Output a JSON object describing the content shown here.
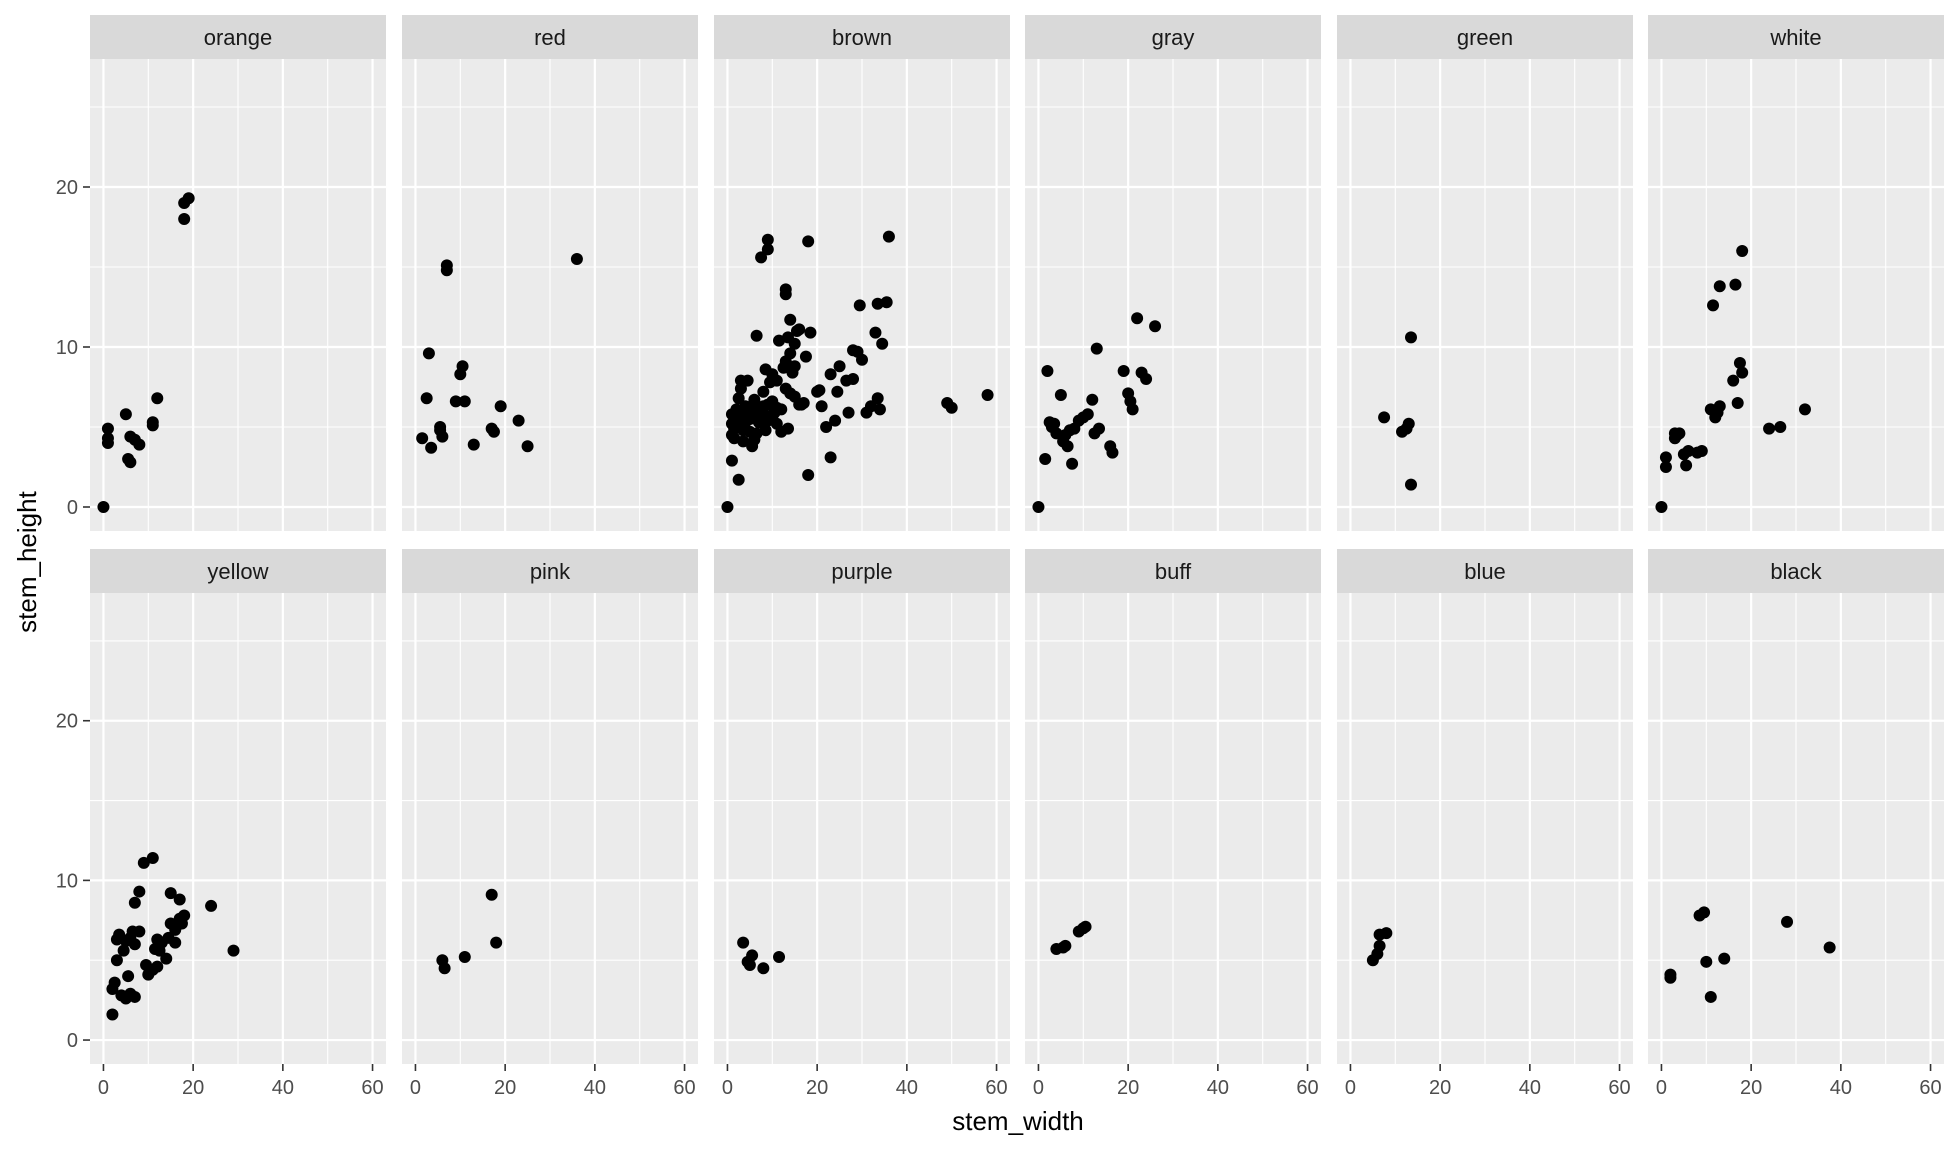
{
  "chart_data": {
    "type": "scatter",
    "xlabel": "stem_width",
    "ylabel": "stem_height",
    "xlim": [
      -3,
      63
    ],
    "ylim": [
      -1.5,
      28
    ],
    "x_ticks": [
      0,
      20,
      40,
      60
    ],
    "y_ticks": [
      0,
      10,
      20
    ],
    "grid": true,
    "layout": {
      "rows": 2,
      "cols": 6
    },
    "panels": [
      {
        "name": "orange",
        "points": [
          [
            0,
            0
          ],
          [
            1,
            4
          ],
          [
            1,
            4.3
          ],
          [
            1,
            4.9
          ],
          [
            5,
            5.8
          ],
          [
            5.5,
            3
          ],
          [
            6,
            2.8
          ],
          [
            6,
            4.4
          ],
          [
            7,
            4.2
          ],
          [
            8,
            3.9
          ],
          [
            11,
            5.1
          ],
          [
            11,
            5.3
          ],
          [
            12,
            6.8
          ],
          [
            18,
            18
          ],
          [
            18,
            19
          ],
          [
            19,
            19.3
          ]
        ]
      },
      {
        "name": "red",
        "points": [
          [
            1.5,
            4.3
          ],
          [
            2.5,
            6.8
          ],
          [
            3,
            9.6
          ],
          [
            3.5,
            3.7
          ],
          [
            5.5,
            4.8
          ],
          [
            5.5,
            5
          ],
          [
            6,
            4.4
          ],
          [
            7,
            14.8
          ],
          [
            7,
            15.1
          ],
          [
            9,
            6.6
          ],
          [
            10,
            8.3
          ],
          [
            10.5,
            8.8
          ],
          [
            11,
            6.6
          ],
          [
            13,
            3.9
          ],
          [
            17,
            4.9
          ],
          [
            17.5,
            4.7
          ],
          [
            19,
            6.3
          ],
          [
            23,
            5.4
          ],
          [
            25,
            3.8
          ],
          [
            36,
            15.5
          ]
        ]
      },
      {
        "name": "brown",
        "points": [
          [
            0,
            0
          ],
          [
            1,
            2.9
          ],
          [
            1,
            4.5
          ],
          [
            1,
            5.2
          ],
          [
            1,
            5.8
          ],
          [
            1.5,
            4.3
          ],
          [
            1.5,
            4.9
          ],
          [
            2,
            5
          ],
          [
            2,
            5.5
          ],
          [
            2,
            6.1
          ],
          [
            2.5,
            1.7
          ],
          [
            2.5,
            6.8
          ],
          [
            3,
            5.2
          ],
          [
            3,
            7.4
          ],
          [
            3,
            7.9
          ],
          [
            3.5,
            4.1
          ],
          [
            3.5,
            4.8
          ],
          [
            4,
            5.3
          ],
          [
            4,
            5.8
          ],
          [
            4,
            6.3
          ],
          [
            4.5,
            7.9
          ],
          [
            5,
            4.7
          ],
          [
            5,
            5.5
          ],
          [
            5,
            6.2
          ],
          [
            5.5,
            3.8
          ],
          [
            5.5,
            5.6
          ],
          [
            6,
            4.2
          ],
          [
            6,
            6.1
          ],
          [
            6,
            6.7
          ],
          [
            6.5,
            4.6
          ],
          [
            6.5,
            5.6
          ],
          [
            6.5,
            10.7
          ],
          [
            7,
            5.3
          ],
          [
            7,
            6.1
          ],
          [
            7.5,
            15.6
          ],
          [
            7.5,
            5.8
          ],
          [
            8,
            6.3
          ],
          [
            8,
            7.2
          ],
          [
            8.5,
            4.8
          ],
          [
            8.5,
            5.7
          ],
          [
            8.5,
            8.6
          ],
          [
            9,
            16.7
          ],
          [
            9,
            16.1
          ],
          [
            9,
            5.4
          ],
          [
            9,
            6.4
          ],
          [
            9.5,
            7.8
          ],
          [
            10,
            5.6
          ],
          [
            10,
            6.6
          ],
          [
            10,
            8.3
          ],
          [
            10.5,
            5.9
          ],
          [
            11,
            5.2
          ],
          [
            11,
            6.2
          ],
          [
            11,
            7.9
          ],
          [
            11.5,
            10.4
          ],
          [
            12,
            4.7
          ],
          [
            12,
            6.1
          ],
          [
            12.5,
            8.7
          ],
          [
            13,
            7.4
          ],
          [
            13,
            9.1
          ],
          [
            13,
            13.3
          ],
          [
            13,
            13.6
          ],
          [
            13.5,
            4.9
          ],
          [
            13.5,
            10.6
          ],
          [
            14,
            11.7
          ],
          [
            14,
            7.1
          ],
          [
            14,
            9.6
          ],
          [
            14.5,
            8.4
          ],
          [
            15,
            8.8
          ],
          [
            15,
            10.2
          ],
          [
            15,
            6.9
          ],
          [
            15.5,
            11
          ],
          [
            16,
            6.4
          ],
          [
            16,
            11.1
          ],
          [
            16.5,
            6.4
          ],
          [
            17,
            6.5
          ],
          [
            17.5,
            9.4
          ],
          [
            18,
            2
          ],
          [
            18,
            16.6
          ],
          [
            18.5,
            10.9
          ],
          [
            20,
            7.2
          ],
          [
            20.5,
            7.3
          ],
          [
            21,
            6.3
          ],
          [
            22,
            5
          ],
          [
            23,
            3.1
          ],
          [
            23,
            8.3
          ],
          [
            24,
            5.4
          ],
          [
            24.5,
            7.2
          ],
          [
            25,
            8.8
          ],
          [
            26.5,
            7.9
          ],
          [
            27,
            5.9
          ],
          [
            28,
            9.8
          ],
          [
            28,
            8
          ],
          [
            29,
            9.7
          ],
          [
            29.5,
            12.6
          ],
          [
            30,
            9.2
          ],
          [
            31,
            5.9
          ],
          [
            32,
            6.3
          ],
          [
            33,
            10.9
          ],
          [
            33.5,
            6.8
          ],
          [
            33.5,
            12.7
          ],
          [
            34,
            6.1
          ],
          [
            34.5,
            10.2
          ],
          [
            35.5,
            12.8
          ],
          [
            36,
            16.9
          ],
          [
            49,
            6.5
          ],
          [
            50,
            6.2
          ],
          [
            58,
            7
          ]
        ]
      },
      {
        "name": "gray",
        "points": [
          [
            0,
            0
          ],
          [
            1.5,
            3
          ],
          [
            2,
            8.5
          ],
          [
            2.5,
            5.3
          ],
          [
            3,
            5
          ],
          [
            3.5,
            5.2
          ],
          [
            4,
            4.6
          ],
          [
            5,
            7
          ],
          [
            5.5,
            4.1
          ],
          [
            6,
            4.5
          ],
          [
            6.5,
            3.8
          ],
          [
            7,
            4.8
          ],
          [
            7.5,
            2.7
          ],
          [
            8,
            4.9
          ],
          [
            9,
            5.4
          ],
          [
            10,
            5.6
          ],
          [
            11,
            5.8
          ],
          [
            12,
            6.7
          ],
          [
            12.5,
            4.6
          ],
          [
            13,
            9.9
          ],
          [
            13.5,
            4.9
          ],
          [
            16,
            3.8
          ],
          [
            16.5,
            3.4
          ],
          [
            19,
            8.5
          ],
          [
            20,
            7.1
          ],
          [
            20.5,
            6.6
          ],
          [
            21,
            6.1
          ],
          [
            22,
            11.8
          ],
          [
            23,
            8.4
          ],
          [
            24,
            8
          ],
          [
            26,
            11.3
          ]
        ]
      },
      {
        "name": "green",
        "points": [
          [
            7.5,
            5.6
          ],
          [
            11.5,
            4.7
          ],
          [
            12.5,
            4.9
          ],
          [
            13,
            5.2
          ],
          [
            13.5,
            1.4
          ],
          [
            13.5,
            10.6
          ]
        ]
      },
      {
        "name": "white",
        "points": [
          [
            0,
            0
          ],
          [
            1,
            2.5
          ],
          [
            1,
            3.1
          ],
          [
            3,
            4.3
          ],
          [
            3,
            4.6
          ],
          [
            3.5,
            4.5
          ],
          [
            4,
            4.6
          ],
          [
            5,
            3.3
          ],
          [
            5.5,
            2.6
          ],
          [
            6,
            3.5
          ],
          [
            8,
            3.4
          ],
          [
            9,
            3.5
          ],
          [
            11,
            6.1
          ],
          [
            11.5,
            12.6
          ],
          [
            12,
            5.6
          ],
          [
            12.5,
            5.9
          ],
          [
            13,
            6.3
          ],
          [
            13,
            13.8
          ],
          [
            16,
            7.9
          ],
          [
            16.5,
            13.9
          ],
          [
            17,
            6.5
          ],
          [
            17.5,
            9
          ],
          [
            18,
            8.4
          ],
          [
            18,
            16
          ],
          [
            24,
            4.9
          ],
          [
            26.5,
            5
          ],
          [
            32,
            6.1
          ]
        ]
      },
      {
        "name": "yellow",
        "points": [
          [
            2,
            1.6
          ],
          [
            2,
            3.2
          ],
          [
            2.5,
            3.6
          ],
          [
            3,
            5
          ],
          [
            3,
            6.3
          ],
          [
            3.5,
            6.6
          ],
          [
            4,
            2.8
          ],
          [
            4.5,
            5.6
          ],
          [
            5,
            2.6
          ],
          [
            5,
            6.2
          ],
          [
            5.5,
            4
          ],
          [
            6,
            2.9
          ],
          [
            6,
            6.4
          ],
          [
            6.5,
            6.8
          ],
          [
            7,
            2.7
          ],
          [
            7,
            6
          ],
          [
            7,
            8.6
          ],
          [
            8,
            6.8
          ],
          [
            8,
            9.3
          ],
          [
            9,
            11.1
          ],
          [
            9.5,
            4.7
          ],
          [
            10,
            4.1
          ],
          [
            11,
            4.4
          ],
          [
            11,
            11.4
          ],
          [
            11.5,
            5.7
          ],
          [
            12,
            6.3
          ],
          [
            12,
            4.6
          ],
          [
            12.5,
            5.6
          ],
          [
            13,
            6.1
          ],
          [
            14,
            5.1
          ],
          [
            14.5,
            6.4
          ],
          [
            15,
            7.3
          ],
          [
            15,
            9.2
          ],
          [
            16,
            6.1
          ],
          [
            16,
            6.9
          ],
          [
            16.5,
            7.2
          ],
          [
            17,
            8.8
          ],
          [
            17,
            7.6
          ],
          [
            17.5,
            7.3
          ],
          [
            18,
            7.8
          ],
          [
            24,
            8.4
          ],
          [
            29,
            5.6
          ]
        ]
      },
      {
        "name": "pink",
        "points": [
          [
            6,
            5
          ],
          [
            6.5,
            4.5
          ],
          [
            11,
            5.2
          ],
          [
            17,
            9.1
          ],
          [
            18,
            6.1
          ]
        ]
      },
      {
        "name": "purple",
        "points": [
          [
            3.5,
            6.1
          ],
          [
            4.5,
            4.9
          ],
          [
            5,
            4.7
          ],
          [
            5.5,
            5.3
          ],
          [
            8,
            4.5
          ],
          [
            11.5,
            5.2
          ]
        ]
      },
      {
        "name": "buff",
        "points": [
          [
            4,
            5.7
          ],
          [
            5.5,
            5.8
          ],
          [
            6,
            5.9
          ],
          [
            9,
            6.8
          ],
          [
            10,
            7
          ],
          [
            10.5,
            7.1
          ]
        ]
      },
      {
        "name": "blue",
        "points": [
          [
            5,
            5
          ],
          [
            6,
            5.4
          ],
          [
            6.5,
            5.9
          ],
          [
            6.5,
            6.6
          ],
          [
            8,
            6.7
          ]
        ]
      },
      {
        "name": "black",
        "points": [
          [
            2,
            3.9
          ],
          [
            2,
            4.1
          ],
          [
            8.5,
            7.8
          ],
          [
            9.5,
            8
          ],
          [
            10,
            4.9
          ],
          [
            11,
            2.7
          ],
          [
            14,
            5.1
          ],
          [
            28,
            7.4
          ],
          [
            37.5,
            5.8
          ]
        ]
      }
    ]
  }
}
